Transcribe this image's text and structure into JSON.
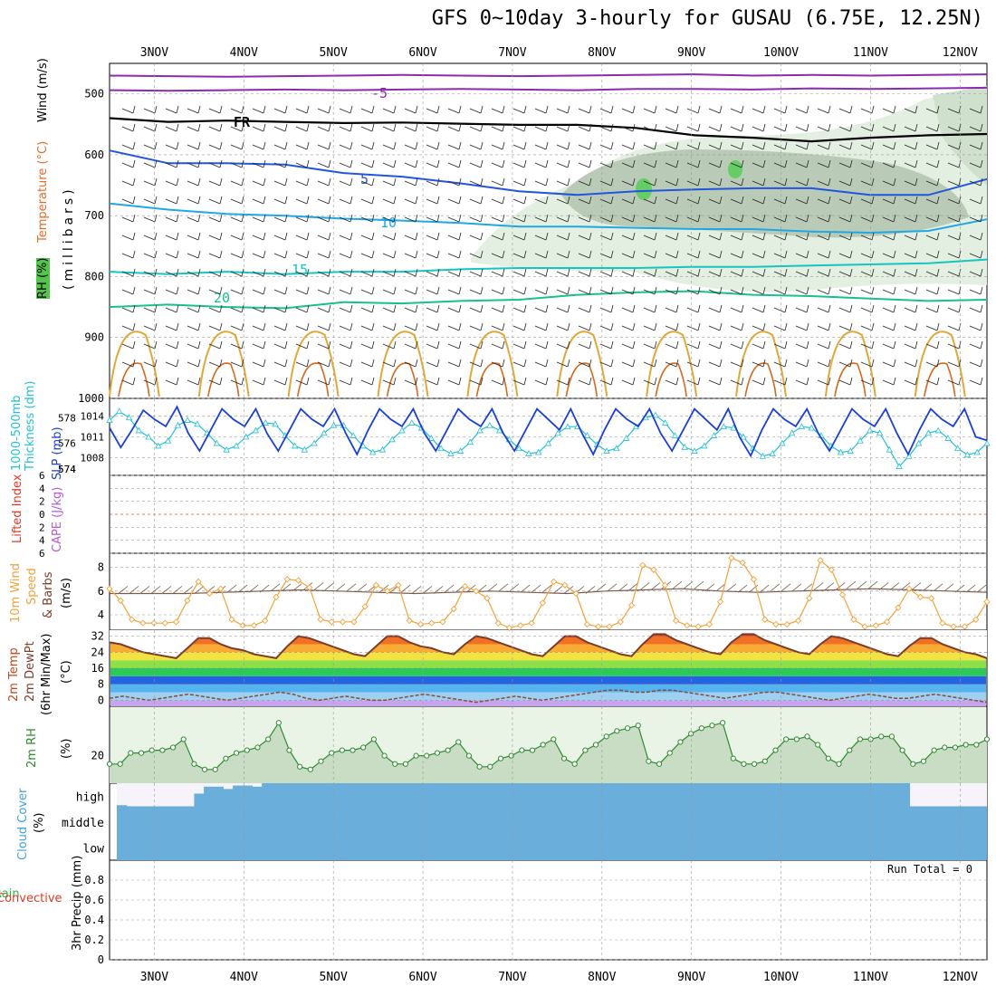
{
  "title": "GFS 0~10day 3-hourly for GUSAU (6.75E, 12.25N)",
  "run_total": "Run Total = 0",
  "dates": [
    "3NOV",
    "4NOV",
    "5NOV",
    "6NOV",
    "7NOV",
    "8NOV",
    "9NOV",
    "10NOV",
    "11NOV",
    "12NOV"
  ],
  "panel_labels": {
    "upper": {
      "wind": "Wind (m/s)",
      "temp": "Temperature (°C)",
      "rh": "RH (%)",
      "axis": "(millibars)"
    },
    "thickness": {
      "left": "Thickness (dm)",
      "left2": "1000-500mb",
      "right": "SLP (mb)"
    },
    "stability": {
      "li": "Lifted Index",
      "cape": "CAPE (J/kg)"
    },
    "wind10m": {
      "a": "10m Wind",
      "b": "Speed",
      "c": "& Barbs",
      "unit": "(m/s)"
    },
    "temp2m": {
      "a": "2m Temp",
      "b": "2m DewPt",
      "c": "(6hr Min/Max)",
      "unit": "(°C)"
    },
    "rh2m": {
      "a": "2m RH",
      "unit": "(%)"
    },
    "cloud": {
      "a": "Cloud Cover",
      "unit": "(%)",
      "levels": [
        "high",
        "middle",
        "low"
      ]
    },
    "precip": {
      "a": "Total / Rain",
      "b": "Convective",
      "c": "3hr Precip (mm)"
    }
  },
  "colors": {
    "slp": "#1a3fd6",
    "thickness": "#24c1d3",
    "wind": "#f4a23a",
    "rh": "#2e8b2e",
    "cloud": "#6aaedb",
    "temp_line": "#7b3b2b",
    "dew": "#8a4a3a",
    "purple": "#8a2bb0",
    "isotherm_fr": "#000000",
    "iso_5": "#2255dd",
    "iso10": "#1fa7e6",
    "iso15": "#15c6c0",
    "iso20": "#18c08a"
  },
  "chart_data": [
    {
      "type": "line",
      "name": "upper_air",
      "x_range": [
        2.5,
        12.3
      ],
      "ylim": [
        1000,
        450
      ],
      "yticks": [
        500,
        600,
        700,
        800,
        900,
        1000
      ],
      "isotherm_labels": [
        "-5",
        "FR",
        "5",
        "10",
        "15",
        "20"
      ],
      "isotherms": [
        {
          "label": "-5",
          "series": [
            {
              "name": "-5a",
              "values": [
                494,
                495,
                494,
                493,
                494,
                493,
                492,
                493,
                494,
                492,
                492,
                493,
                491,
                492,
                491,
                490
              ]
            },
            {
              "name": "-5b",
              "values": [
                470,
                471,
                472,
                471,
                470,
                469,
                470,
                471,
                470,
                469,
                468,
                470,
                469,
                470,
                469,
                468
              ]
            }
          ]
        },
        {
          "label": "FR",
          "values": [
            540,
            546,
            544,
            546,
            548,
            547,
            549,
            551,
            551,
            556,
            568,
            572,
            578,
            572,
            568,
            566
          ]
        },
        {
          "label": "5",
          "values": [
            593,
            614,
            614,
            616,
            630,
            636,
            647,
            660,
            666,
            660,
            657,
            655,
            655,
            666,
            666,
            640
          ]
        },
        {
          "label": "10",
          "values": [
            680,
            690,
            697,
            700,
            705,
            708,
            712,
            718,
            718,
            720,
            722,
            722,
            726,
            728,
            725,
            706
          ]
        },
        {
          "label": "15",
          "values": [
            792,
            796,
            792,
            796,
            792,
            792,
            788,
            786,
            786,
            786,
            784,
            784,
            782,
            780,
            778,
            772
          ]
        },
        {
          "label": "20",
          "values": [
            850,
            846,
            850,
            852,
            842,
            844,
            840,
            838,
            830,
            826,
            824,
            830,
            832,
            836,
            840,
            838
          ]
        }
      ]
    },
    {
      "type": "line",
      "name": "thickness_slp",
      "x_range": [
        2.5,
        12.3
      ],
      "left_axis": {
        "label": "Thickness (dm)",
        "ticks": [
          574,
          576,
          578
        ]
      },
      "right_axis": {
        "label": "SLP (mb)",
        "ticks": [
          1008,
          1011,
          1014
        ]
      },
      "series": [
        {
          "name": "SLP (mb)",
          "values": [
            1012.3,
            1009.5,
            1012,
            1014.8,
            1013.5,
            1012.5,
            1015.3,
            1011.5,
            1009,
            1012,
            1015,
            1013.5,
            1012.5,
            1015,
            1011.5,
            1009,
            1012,
            1015,
            1013.5,
            1012.5,
            1015,
            1011.5,
            1008.5,
            1012,
            1015,
            1013.5,
            1012.5,
            1015,
            1011.5,
            1009,
            1012,
            1015,
            1013.5,
            1012.5,
            1015,
            1011.5,
            1009,
            1012,
            1015,
            1013.5,
            1012,
            1015,
            1011.5,
            1008.5,
            1012,
            1015,
            1013.5,
            1012.5,
            1015,
            1011.5,
            1009,
            1012,
            1015,
            1013.5,
            1012,
            1015,
            1011,
            1008.3,
            1012,
            1015,
            1013.5,
            1012.5,
            1015,
            1011.5,
            1009,
            1012,
            1015,
            1013.5,
            1012.5,
            1015,
            1011.5,
            1008.5,
            1012,
            1015,
            1013.5,
            1012.5,
            1015,
            1011,
            1010.5
          ]
        },
        {
          "name": "Thickness (dm)",
          "values": [
            577.8,
            578.5,
            578,
            577,
            576.5,
            575.8,
            576.2,
            577.4,
            577.8,
            577.5,
            576.8,
            576,
            575.5,
            575.8,
            576.5,
            577,
            577.6,
            577.5,
            576.6,
            575.8,
            575.5,
            576,
            576.8,
            577.4,
            577.4,
            576.6,
            575.8,
            575.3,
            575.5,
            576.3,
            577,
            577.6,
            577.2,
            576.4,
            575.6,
            575.2,
            575.4,
            576.1,
            577,
            577.4,
            577,
            576.3,
            575.6,
            575.2,
            575.3,
            576,
            576.8,
            577.3,
            577.3,
            576.6,
            575.9,
            575.4,
            575.6,
            576.4,
            577.3,
            578,
            578.2,
            577.6,
            576.6,
            575.7,
            575.4,
            575.8,
            576.6,
            577.3,
            577.2,
            576.5,
            575.6,
            575,
            575.2,
            576,
            576.8,
            577.3,
            577.2,
            576.6,
            575.8,
            575.3,
            575.4,
            576.2,
            577,
            576.8,
            575.5,
            574.2,
            575,
            576,
            576.8,
            577,
            576.4,
            575.6,
            575.1,
            575.3,
            576
          ]
        }
      ]
    },
    {
      "type": "line",
      "name": "stability",
      "x_range": [
        2.5,
        12.3
      ],
      "ylim": [
        6,
        -6
      ],
      "yticks": [
        -6,
        -4,
        -2,
        0,
        2,
        4,
        6
      ],
      "ytick_labels": [
        "6",
        "4",
        "2",
        "0",
        "2",
        "4",
        "6"
      ],
      "series": []
    },
    {
      "type": "line",
      "name": "wind10m",
      "x_range": [
        2.5,
        12.3
      ],
      "ylim": [
        2.7,
        9.2
      ],
      "yticks": [
        4,
        6,
        8
      ],
      "series": [
        {
          "name": "10m Wind Speed",
          "values": [
            6.2,
            5.2,
            3.6,
            3.3,
            3.3,
            3.3,
            3.4,
            5.2,
            6.8,
            5.8,
            6.2,
            3.6,
            3.1,
            3.1,
            3.5,
            5.5,
            7.0,
            6.9,
            6.3,
            3.6,
            3.4,
            3.4,
            3.4,
            4.7,
            6.5,
            6.0,
            6.5,
            3.5,
            3.2,
            3.3,
            3.4,
            4.5,
            6.4,
            6.0,
            5.4,
            3.3,
            2.9,
            3.1,
            3.3,
            5.0,
            6.8,
            6.5,
            5.8,
            3.2,
            3.0,
            3.0,
            3.4,
            4.8,
            8.2,
            7.8,
            6.5,
            3.5,
            3.1,
            3.0,
            3.2,
            5.1,
            8.8,
            8.4,
            7.0,
            3.6,
            3.2,
            3.2,
            3.5,
            5.4,
            8.6,
            7.8,
            5.7,
            3.6,
            3.0,
            3.1,
            3.4,
            4.6,
            6.2,
            5.5,
            5.4,
            3.3,
            3.0,
            3.0,
            3.6,
            5.1
          ]
        },
        {
          "name": "barb_speed",
          "values": [
            5.8,
            5.8,
            5.8,
            5.9,
            6.0,
            6.1,
            6.0,
            5.9,
            5.8,
            5.9,
            6.0,
            5.9,
            5.8,
            6.0,
            6.1,
            6.2,
            6.0,
            5.9,
            6.0,
            6.1,
            6.2,
            6.1,
            6.0,
            5.9
          ]
        }
      ]
    },
    {
      "type": "area",
      "name": "temp2m",
      "x_range": [
        2.5,
        12.3
      ],
      "ylim": [
        -3,
        35
      ],
      "yticks": [
        0,
        8,
        16,
        24,
        32
      ],
      "color_bands": [
        {
          "from": -3,
          "to": 0,
          "color": "#c6a4ee"
        },
        {
          "from": 0,
          "to": 4,
          "color": "#9ed0f2"
        },
        {
          "from": 4,
          "to": 8,
          "color": "#55b4ee"
        },
        {
          "from": 8,
          "to": 12,
          "color": "#2563e6"
        },
        {
          "from": 12,
          "to": 16,
          "color": "#2cc95a"
        },
        {
          "from": 16,
          "to": 20,
          "color": "#8ee04a"
        },
        {
          "from": 20,
          "to": 24,
          "color": "#f4e240"
        },
        {
          "from": 24,
          "to": 28,
          "color": "#f8ab35"
        },
        {
          "from": 28,
          "to": 32,
          "color": "#f27024"
        },
        {
          "from": 32,
          "to": 35,
          "color": "#e03a1a"
        }
      ],
      "series": [
        {
          "name": "2m Temp",
          "values": [
            29,
            28,
            26,
            24,
            23,
            22,
            21,
            26,
            31,
            31,
            28,
            26,
            25,
            23,
            22,
            21,
            27,
            32,
            31,
            29,
            27,
            25,
            23,
            22,
            27,
            32,
            32,
            29,
            27,
            26,
            24,
            23,
            28,
            32,
            31,
            29,
            27,
            25,
            23,
            22,
            27,
            32,
            32,
            29,
            27,
            25,
            23,
            22,
            28,
            33,
            33,
            30,
            28,
            26,
            24,
            23,
            29,
            33,
            33,
            30,
            28,
            26,
            24,
            23,
            28,
            32,
            31,
            29,
            27,
            25,
            23,
            22,
            27,
            31,
            31,
            28,
            26,
            24,
            23,
            21
          ]
        },
        {
          "name": "2m DewPt",
          "values": [
            1,
            2,
            1,
            0,
            1,
            2,
            3,
            2,
            1,
            0,
            1,
            2,
            3,
            4,
            3,
            1,
            0,
            1,
            2,
            1,
            0,
            0,
            1,
            2,
            3,
            2,
            1,
            0,
            -1,
            0,
            1,
            2,
            1,
            0,
            1,
            2,
            3,
            4,
            5,
            5,
            4,
            4,
            5,
            5,
            4,
            3,
            2,
            1,
            2,
            3,
            4,
            4,
            3,
            2,
            1,
            0,
            1,
            2,
            3,
            2,
            1,
            1,
            2,
            3,
            2,
            1,
            0,
            -1
          ]
        }
      ]
    },
    {
      "type": "area",
      "name": "rh2m",
      "x_range": [
        2.5,
        12.3
      ],
      "ylim": [
        10,
        38
      ],
      "yticks": [
        20
      ],
      "series": [
        {
          "name": "2m RH",
          "values": [
            17,
            17,
            21,
            21,
            22,
            22,
            23,
            26,
            17,
            15,
            15,
            19,
            21,
            22,
            23,
            26,
            32,
            22,
            16,
            15,
            18,
            21,
            22,
            22,
            23,
            26,
            20,
            17,
            17,
            20,
            20,
            21,
            22,
            25,
            20,
            16,
            16,
            19,
            20,
            22,
            22,
            24,
            26,
            19,
            17,
            22,
            24,
            27,
            29,
            30,
            31,
            18,
            17,
            21,
            25,
            28,
            30,
            31,
            32,
            19,
            17,
            17,
            18,
            22,
            26,
            26,
            27,
            24,
            19,
            17,
            22,
            26,
            26,
            27,
            27,
            22,
            17,
            18,
            22,
            23,
            23,
            24,
            24,
            26
          ]
        }
      ]
    },
    {
      "type": "bar",
      "name": "cloud_cover",
      "x_range": [
        2.5,
        12.3
      ],
      "levels": [
        "high",
        "middle",
        "low"
      ],
      "series": [
        {
          "name": "high",
          "values": [
            0.05,
            0.0,
            0.0,
            0.0,
            0.0,
            0.0,
            0.0,
            0.0,
            0.55,
            0.85,
            0.85,
            0.75,
            0.9,
            0.9,
            0.85,
            1.0,
            1.0,
            1.0,
            1.0,
            1.0,
            1.0,
            1.0,
            1.0,
            1.0,
            1.0,
            1.0,
            1.0,
            1.0,
            1.0,
            1.0,
            1.0,
            1.0,
            1.0,
            1.0,
            1.0,
            1.0,
            1.0,
            1.0,
            1.0,
            1.0,
            1.0,
            1.0,
            1.0,
            1.0,
            1.0,
            1.0,
            1.0,
            1.0,
            1.0,
            1.0,
            1.0,
            1.0,
            1.0,
            1.0,
            1.0,
            1.0,
            1.0,
            1.0,
            1.0,
            1.0,
            1.0,
            1.0,
            1.0,
            1.0,
            1.0,
            1.0,
            1.0,
            1.0,
            1.0,
            1.0,
            1.0,
            1.0,
            1.0,
            1.0,
            1.0,
            1.0,
            1.0,
            1.0,
            1.0,
            1.0,
            1.0,
            1.0,
            0.0,
            0.0,
            0.0,
            0.0,
            0.0,
            0.0,
            0.0,
            0.0
          ]
        },
        {
          "name": "middle",
          "values": [
            1.0
          ]
        },
        {
          "name": "low",
          "values": [
            1.0
          ]
        }
      ]
    },
    {
      "type": "bar",
      "name": "precip",
      "x_range": [
        2.5,
        12.3
      ],
      "ylim": [
        0,
        1.0
      ],
      "yticks": [
        0,
        0.2,
        0.4,
        0.6,
        0.8
      ],
      "ytick_labels": [
        "0",
        "0.2",
        "0.4",
        "0.6",
        "0.8"
      ],
      "series": []
    }
  ]
}
